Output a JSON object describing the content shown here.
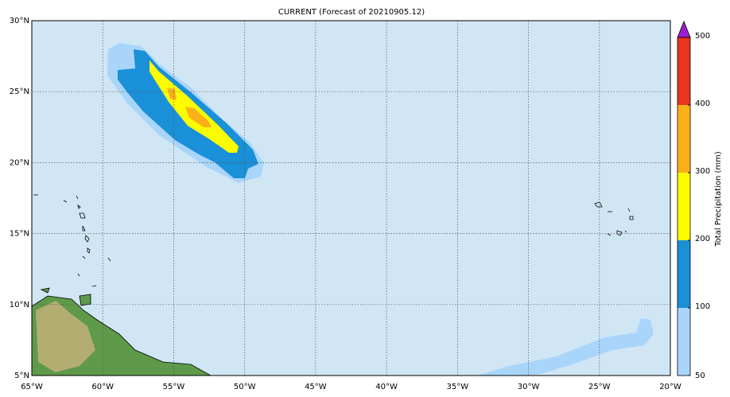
{
  "title": "CURRENT (Forecast of 20210905.12)",
  "map": {
    "lon_labels": [
      "65°W",
      "60°W",
      "55°W",
      "50°W",
      "45°W",
      "40°W",
      "35°W",
      "30°W",
      "25°W",
      "20°W"
    ],
    "lat_labels": [
      "30°N",
      "25°N",
      "20°N",
      "15°N",
      "10°N",
      "5°N"
    ]
  },
  "colorbar": {
    "label": "Total Precipitation (mm)",
    "levels": [
      50,
      100,
      200,
      300,
      400,
      500
    ],
    "colors": [
      "#a9d5fb",
      "#1a90d8",
      "#fdfd00",
      "#fcb018",
      "#e8361f"
    ],
    "extend_color": "#9b1fd0"
  }
}
